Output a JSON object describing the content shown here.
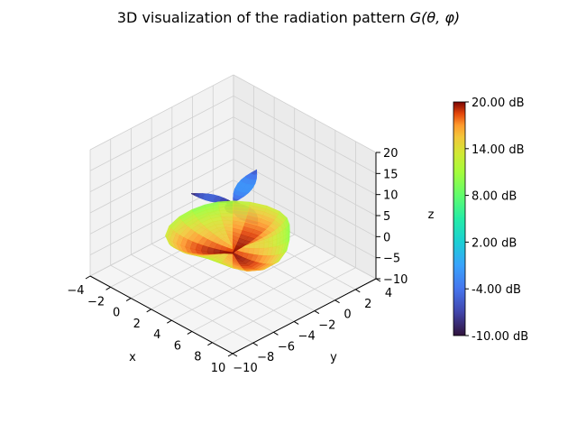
{
  "title": {
    "prefix": "3D visualization of the radiation pattern ",
    "math": "G(θ, φ)"
  },
  "chart_data": {
    "type": "surface3d",
    "title": "3D visualization of the radiation pattern G(θ, φ)",
    "xlabel": "x",
    "ylabel": "y",
    "zlabel": "z",
    "x_ticks": [
      -4,
      -2,
      0,
      2,
      4,
      6,
      8,
      10
    ],
    "y_ticks": [
      -10,
      -8,
      -6,
      -4,
      -2,
      0,
      2,
      4
    ],
    "z_ticks": [
      -10,
      -5,
      0,
      5,
      10,
      15,
      20
    ],
    "xlim": [
      -4,
      10
    ],
    "ylim": [
      -10,
      4
    ],
    "zlim": [
      -10,
      20
    ],
    "colorbar": {
      "colormap": "turbo",
      "range_db": [
        -10,
        20
      ],
      "tick_labels": [
        "20.00 dB",
        "14.00 dB",
        "8.00 dB",
        "2.00 dB",
        "-4.00 dB",
        "-10.00 dB"
      ]
    },
    "main_lobe": {
      "peak_gain_db": 20,
      "direction_xyz": [
        7,
        -7,
        6
      ]
    },
    "side_lobes_note": "narrow back/side lobes below 0 dB"
  }
}
